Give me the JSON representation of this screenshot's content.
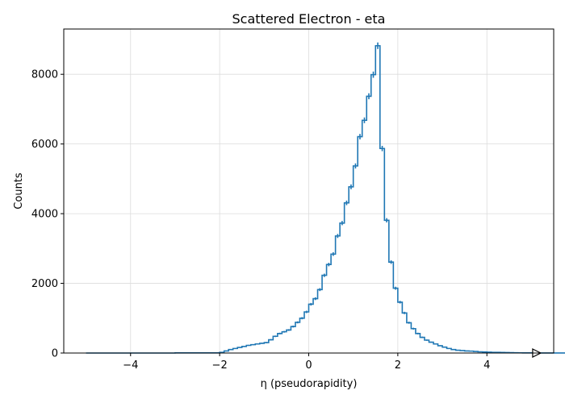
{
  "chart_data": {
    "type": "line",
    "title": "Scattered Electron - eta",
    "xlabel": "η (pseudorapidity)",
    "ylabel": "Counts",
    "xlim": [
      -5.5,
      5.5
    ],
    "ylim": [
      0,
      9300
    ],
    "xticks": [
      -4,
      -2,
      0,
      2,
      4
    ],
    "xtick_labels": [
      "−4",
      "−2",
      "0",
      "2",
      "4"
    ],
    "yticks": [
      0,
      2000,
      4000,
      6000,
      8000
    ],
    "ytick_labels": [
      "0",
      "2000",
      "4000",
      "6000",
      "8000"
    ],
    "grid": true,
    "legend": "none",
    "bin_width": 0.1,
    "series": [
      {
        "style": "step histogram with error bars",
        "color": "#1f77b4",
        "bin_edges_start": -5.0,
        "values": [
          0,
          0,
          0,
          0,
          0,
          0,
          0,
          0,
          0,
          0,
          0,
          0,
          0,
          0,
          0,
          0,
          0,
          0,
          0,
          0,
          5,
          5,
          5,
          5,
          5,
          5,
          5,
          5,
          5,
          5,
          20,
          60,
          100,
          130,
          160,
          190,
          220,
          240,
          260,
          280,
          300,
          380,
          480,
          560,
          610,
          660,
          760,
          880,
          1000,
          1180,
          1400,
          1560,
          1820,
          2230,
          2540,
          2840,
          3360,
          3730,
          4310,
          4770,
          5370,
          6210,
          6680,
          7370,
          7990,
          8820,
          5870,
          3810,
          2610,
          1860,
          1460,
          1150,
          870,
          700,
          560,
          450,
          370,
          310,
          260,
          210,
          170,
          130,
          100,
          80,
          70,
          60,
          55,
          45,
          35,
          30,
          25,
          20,
          18,
          15,
          12,
          10,
          8,
          6,
          5,
          4,
          3,
          3,
          2,
          2,
          2,
          1,
          1,
          1,
          1,
          1
        ]
      }
    ],
    "overflow_marker": "right-pointing open triangle at x = 5.1"
  }
}
